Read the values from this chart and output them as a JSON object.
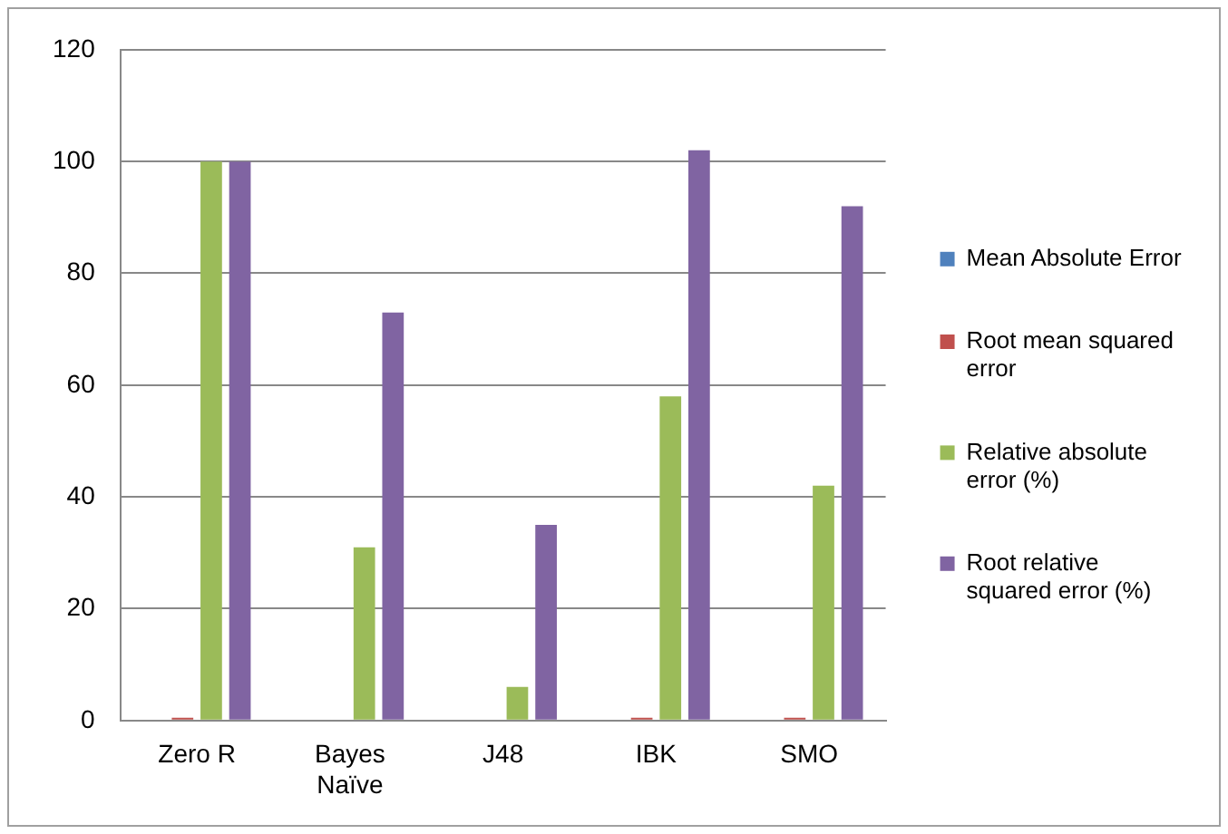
{
  "chart_data": {
    "type": "bar",
    "categories": [
      "Zero R",
      "Bayes Naïve",
      "J48",
      "IBK",
      "SMO"
    ],
    "series": [
      {
        "name": "Mean Absolute Error",
        "color": "#4f81bd",
        "values": [
          null,
          null,
          null,
          null,
          null
        ]
      },
      {
        "name": "Root mean squared error",
        "color": "#c0504d",
        "values": [
          0.5,
          null,
          null,
          0.5,
          0.5
        ]
      },
      {
        "name": "Relative absolute error (%)",
        "color": "#9bbb59",
        "values": [
          100,
          31,
          6,
          58,
          42
        ]
      },
      {
        "name": "Root relative squared error (%)",
        "color": "#8064a2",
        "values": [
          100,
          73,
          35,
          102,
          92
        ]
      }
    ],
    "ylim": [
      0,
      120
    ],
    "yticks": [
      0,
      20,
      40,
      60,
      80,
      100,
      120
    ],
    "grid": "y",
    "legend": "right"
  }
}
